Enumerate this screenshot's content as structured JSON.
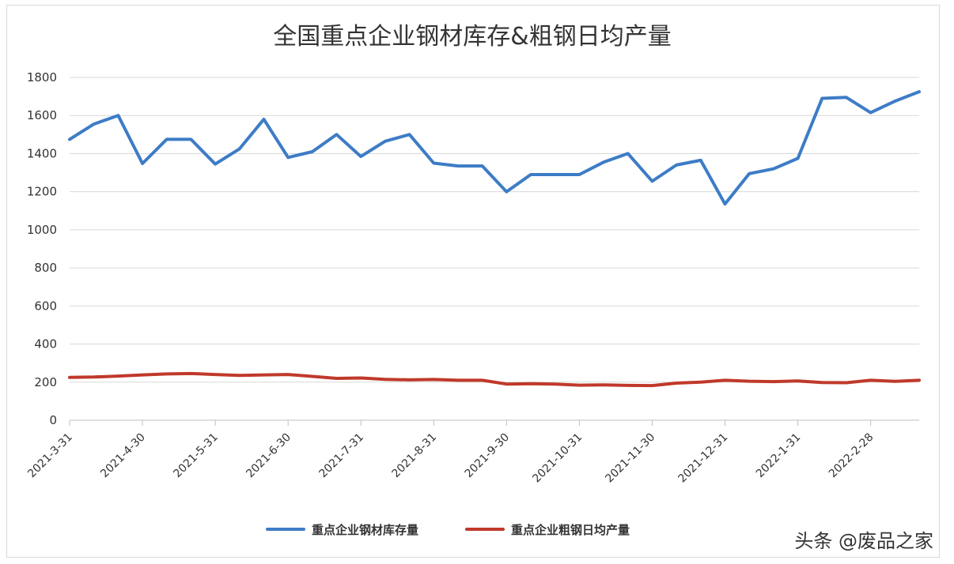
{
  "chart_data": {
    "type": "line",
    "title": "全国重点企业钢材库存&粗钢日均产量",
    "ylim": [
      0,
      1800
    ],
    "yticks": [
      "0",
      "200",
      "400",
      "600",
      "800",
      "1000",
      "1200",
      "1400",
      "1600",
      "1800"
    ],
    "xtick_labels": [
      "2021-3-31",
      "2021-4-30",
      "2021-5-31",
      "2021-6-30",
      "2021-7-31",
      "2021-8-31",
      "2021-9-30",
      "2021-10-31",
      "2021-11-30",
      "2021-12-31",
      "2022-1-31",
      "2022-2-28"
    ],
    "xtick_positions": [
      0,
      3,
      6,
      9,
      12,
      15,
      18,
      21,
      24,
      27,
      30,
      33
    ],
    "grid": true,
    "legend_position": "bottom",
    "series": [
      {
        "name": "重点企业钢材库存量",
        "color": "#3d7cc6",
        "values": [
          1475,
          1555,
          1600,
          1348,
          1475,
          1475,
          1345,
          1425,
          1580,
          1380,
          1410,
          1500,
          1385,
          1465,
          1500,
          1350,
          1335,
          1335,
          1200,
          1290,
          1290,
          1290,
          1355,
          1400,
          1255,
          1340,
          1365,
          1135,
          1295,
          1320,
          1375,
          1690,
          1695,
          1615,
          1675,
          1725
        ]
      },
      {
        "name": "重点企业粗钢日均产量",
        "color": "#c0392b",
        "values": [
          225,
          227,
          232,
          238,
          243,
          245,
          240,
          235,
          238,
          240,
          230,
          220,
          222,
          215,
          212,
          214,
          210,
          210,
          190,
          192,
          190,
          184,
          186,
          183,
          182,
          195,
          200,
          210,
          205,
          203,
          206,
          198,
          197,
          210,
          204,
          210
        ]
      }
    ]
  },
  "watermark": "头条 @废品之家"
}
